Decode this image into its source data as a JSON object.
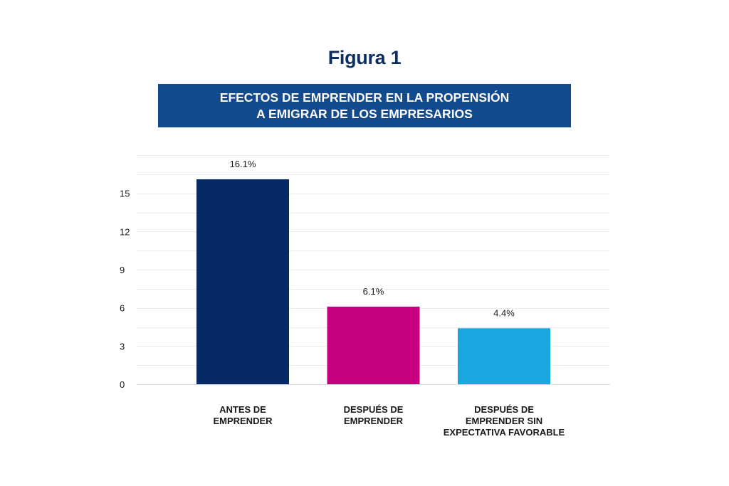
{
  "figure_label": "Figura 1",
  "banner": {
    "line1": "EFECTOS DE EMPRENDER EN LA PROPENSIÓN",
    "line2": "A EMIGRAR DE LOS EMPRESARIOS"
  },
  "chart_data": {
    "type": "bar",
    "title": "EFECTOS DE EMPRENDER EN LA PROPENSIÓN A EMIGRAR DE LOS EMPRESARIOS",
    "xlabel": "",
    "ylabel": "",
    "categories": [
      [
        "ANTES DE",
        "EMPRENDER"
      ],
      [
        "DESPUÉS DE",
        "EMPRENDER"
      ],
      [
        "DESPUÉS DE",
        "EMPRENDER SIN",
        "EXPECTATIVA FAVORABLE"
      ]
    ],
    "values": [
      16.1,
      6.1,
      4.4
    ],
    "data_labels": [
      "16.1%",
      "6.1%",
      "4.4%"
    ],
    "colors": [
      "#062a66",
      "#c6007e",
      "#1aa7e0"
    ],
    "ylim": [
      0,
      18
    ],
    "yticks": [
      0,
      3,
      6,
      9,
      12,
      15
    ],
    "gridline_step": 1.5,
    "grid": true,
    "legend": "none"
  }
}
